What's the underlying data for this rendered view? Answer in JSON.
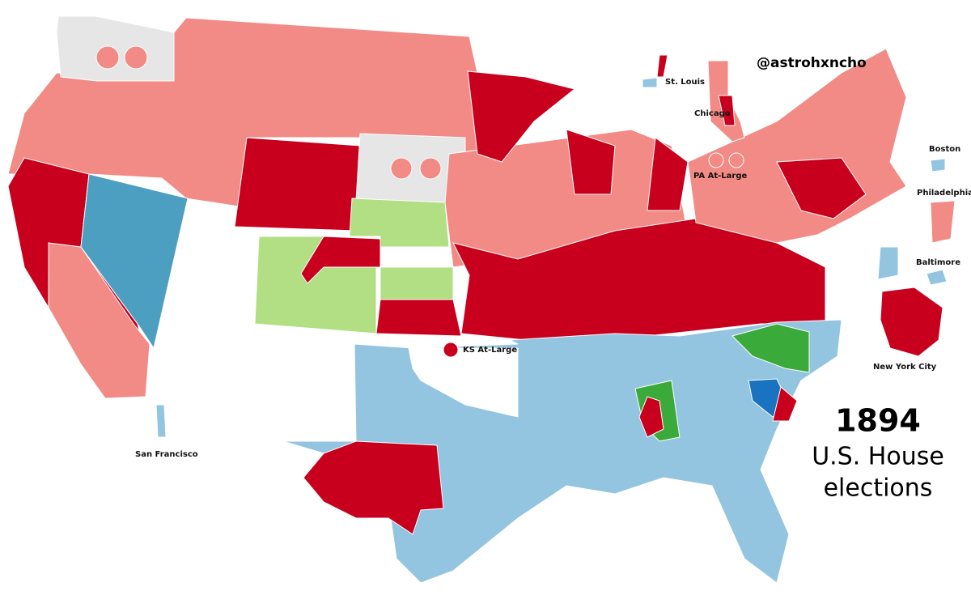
{
  "title": {
    "year": "1894",
    "line1": "U.S. House",
    "line2": "elections"
  },
  "credit": "@astrohxncho",
  "labels": {
    "st_louis": "St. Louis",
    "chicago": "Chicago",
    "pa_at_large": "PA At-Large",
    "boston": "Boston",
    "philadelphia": "Philadelphia",
    "baltimore": "Baltimore",
    "new_york_city": "New York City",
    "ks_at_large": "KS At-Large",
    "san_francisco": "San Francisco"
  }
}
